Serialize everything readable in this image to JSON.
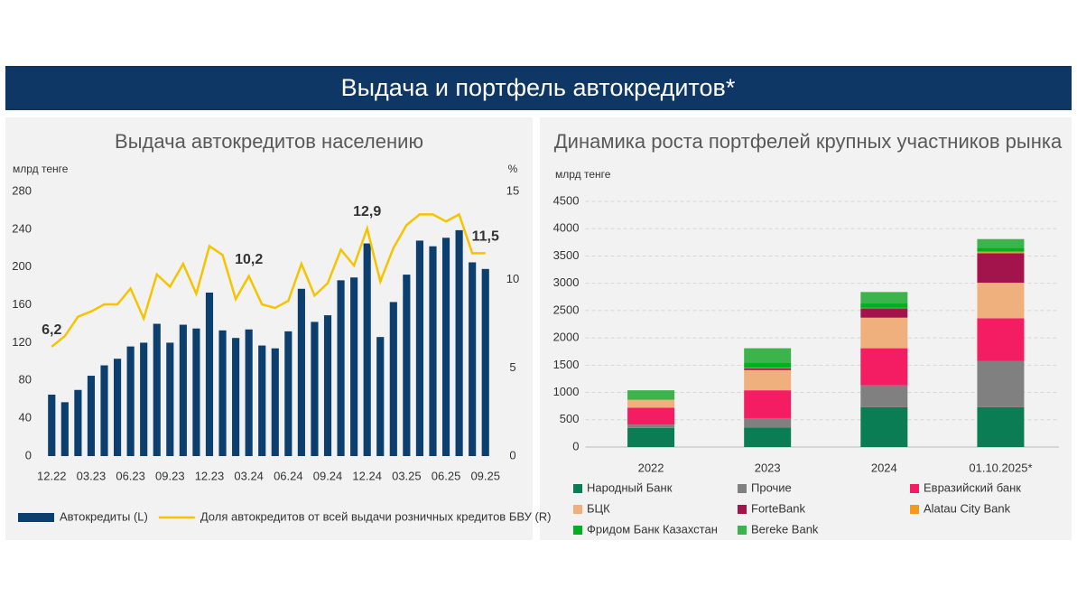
{
  "header": {
    "title": "Выдача и портфель автокредитов*"
  },
  "chart_data": [
    {
      "type": "combo",
      "title": "Выдача автокредитов населению",
      "y_label": "млрд тенге",
      "y2_label": "%",
      "categories": [
        "12.22",
        null,
        null,
        "03.23",
        null,
        null,
        "06.23",
        null,
        null,
        "09.23",
        null,
        null,
        "12.23",
        null,
        null,
        "03.24",
        null,
        null,
        "06.24",
        null,
        null,
        "09.24",
        null,
        null,
        "12.24",
        null,
        null,
        "03.25",
        null,
        null,
        "06.25",
        null,
        null,
        "09.25"
      ],
      "ylim": [
        0,
        280
      ],
      "yticks": [
        0,
        40,
        80,
        120,
        160,
        200,
        240,
        280
      ],
      "y2lim": [
        0,
        15
      ],
      "y2ticks": [
        0,
        5,
        10,
        15
      ],
      "grid": false,
      "series": [
        {
          "name": "Автокредиты (L)",
          "type": "bar",
          "color": "#0d3f6e",
          "values": [
            65,
            57,
            70,
            85,
            96,
            103,
            116,
            120,
            140,
            120,
            139,
            135,
            173,
            133,
            125,
            134,
            117,
            114,
            132,
            177,
            142,
            149,
            186,
            189,
            225,
            126,
            163,
            192,
            228,
            222,
            231,
            239,
            205,
            198
          ]
        },
        {
          "name": "Доля автокредитов от всей выдачи розничных кредитов БВУ (R)",
          "type": "line",
          "axis": "y2",
          "color": "#f5c400",
          "values": [
            6.2,
            6.8,
            7.9,
            8.2,
            8.6,
            8.6,
            9.5,
            7.8,
            10.3,
            9.6,
            10.9,
            9.2,
            11.9,
            11.4,
            8.9,
            10.2,
            8.6,
            8.4,
            8.8,
            10.9,
            9.1,
            9.8,
            11.7,
            10.8,
            12.9,
            9.9,
            11.8,
            13.1,
            13.7,
            13.7,
            13.3,
            13.7,
            11.5,
            11.5
          ],
          "value_labels": [
            "6,2",
            null,
            null,
            null,
            null,
            null,
            null,
            null,
            null,
            null,
            null,
            null,
            null,
            null,
            null,
            "10,2",
            null,
            null,
            null,
            null,
            null,
            null,
            null,
            null,
            "12,9",
            null,
            null,
            null,
            null,
            null,
            null,
            null,
            null,
            "11,5"
          ]
        }
      ]
    },
    {
      "type": "stacked_bar",
      "title": "Динамика роста портфелей крупных участников рынка",
      "y_label": "млрд тенге",
      "categories": [
        "2022",
        "2023",
        "2024",
        "01.10.2025*"
      ],
      "ylim": [
        0,
        4500
      ],
      "yticks": [
        0,
        500,
        1000,
        1500,
        2000,
        2500,
        3000,
        3500,
        4000,
        4500
      ],
      "grid": true,
      "series": [
        {
          "name": "Народный Банк",
          "color": "#0a7d55",
          "values": [
            350,
            360,
            730,
            730
          ]
        },
        {
          "name": "Прочие",
          "color": "#808080",
          "values": [
            60,
            170,
            400,
            850
          ]
        },
        {
          "name": "Евразийский банк",
          "color": "#f41c63",
          "values": [
            310,
            510,
            680,
            780
          ]
        },
        {
          "name": "БЦК",
          "color": "#f0b07e",
          "values": [
            150,
            370,
            560,
            650
          ]
        },
        {
          "name": "ForteBank",
          "color": "#a3144c",
          "values": [
            0,
            30,
            170,
            540
          ]
        },
        {
          "name": "Alatau City Bank",
          "color": "#f39a1e",
          "values": [
            0,
            10,
            10,
            30
          ]
        },
        {
          "name": "Фридом Банк Казахстан",
          "color": "#00b020",
          "values": [
            20,
            100,
            80,
            70
          ]
        },
        {
          "name": "Bereke Bank",
          "color": "#3cb44b",
          "values": [
            150,
            260,
            210,
            160
          ]
        }
      ]
    }
  ]
}
